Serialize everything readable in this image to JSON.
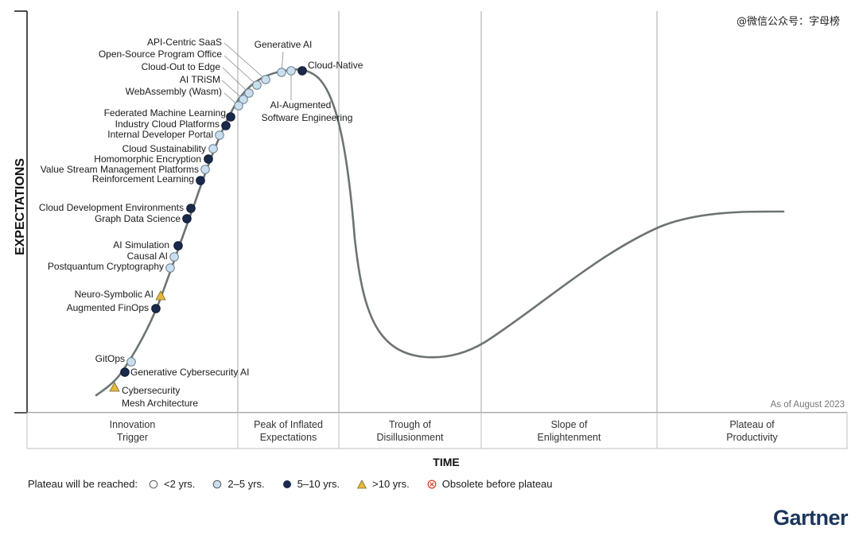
{
  "watermark": "@微信公众号：字母榜",
  "brand": "Gartner",
  "chart_data": {
    "type": "scatter",
    "ylabel": "EXPECTATIONS",
    "xlabel": "TIME",
    "as_of": "As of August 2023",
    "phases": [
      "Innovation Trigger",
      "Peak of Inflated Expectations",
      "Trough of Disillusionment",
      "Slope of Enlightenment",
      "Plateau of Productivity"
    ],
    "legend_title": "Plateau will be reached:",
    "legend": [
      {
        "label": "<2 yrs.",
        "class": "lt2"
      },
      {
        "label": "2–5 yrs.",
        "class": "2to5"
      },
      {
        "label": "5–10 yrs.",
        "class": "5to10"
      },
      {
        "label": ">10 yrs.",
        "class": "gt10"
      },
      {
        "label": "Obsolete before plateau",
        "class": "obsolete"
      }
    ],
    "colors": {
      "curve": "#6b7472",
      "lt2": "#ffffff",
      "2to5": "#c9dff0",
      "5to10": "#1b2a4a",
      "gt10": "#e6b83a",
      "obsolete": "#d9452f",
      "divider": "#a6a6a6"
    },
    "technologies": [
      {
        "name": "API-Centric SaaS",
        "plateau": "2to5"
      },
      {
        "name": "Open-Source Program Office",
        "plateau": "2to5"
      },
      {
        "name": "Cloud-Out to Edge",
        "plateau": "2to5"
      },
      {
        "name": "AI TRiSM",
        "plateau": "2to5"
      },
      {
        "name": "WebAssembly (Wasm)",
        "plateau": "2to5"
      },
      {
        "name": "Generative AI",
        "plateau": "2to5"
      },
      {
        "name": "Cloud-Native",
        "plateau": "5to10"
      },
      {
        "name": "AI-Augmented Software Engineering",
        "plateau": "2to5"
      },
      {
        "name": "Federated Machine Learning",
        "plateau": "5to10"
      },
      {
        "name": "Industry Cloud Platforms",
        "plateau": "5to10"
      },
      {
        "name": "Internal Developer Portal",
        "plateau": "2to5"
      },
      {
        "name": "Cloud Sustainability",
        "plateau": "2to5"
      },
      {
        "name": "Homomorphic Encryption",
        "plateau": "5to10"
      },
      {
        "name": "Value Stream Management Platforms",
        "plateau": "2to5"
      },
      {
        "name": "Reinforcement Learning",
        "plateau": "5to10"
      },
      {
        "name": "Cloud Development Environments",
        "plateau": "5to10"
      },
      {
        "name": "Graph Data Science",
        "plateau": "5to10"
      },
      {
        "name": "AI Simulation",
        "plateau": "5to10"
      },
      {
        "name": "Causal AI",
        "plateau": "2to5"
      },
      {
        "name": "Postquantum Cryptography",
        "plateau": "2to5"
      },
      {
        "name": "Neuro-Symbolic AI",
        "plateau": "gt10"
      },
      {
        "name": "Augmented FinOps",
        "plateau": "5to10"
      },
      {
        "name": "GitOps",
        "plateau": "2to5"
      },
      {
        "name": "Generative Cybersecurity AI",
        "plateau": "5to10"
      },
      {
        "name": "Cybersecurity Mesh Architecture",
        "plateau": "gt10"
      }
    ]
  }
}
